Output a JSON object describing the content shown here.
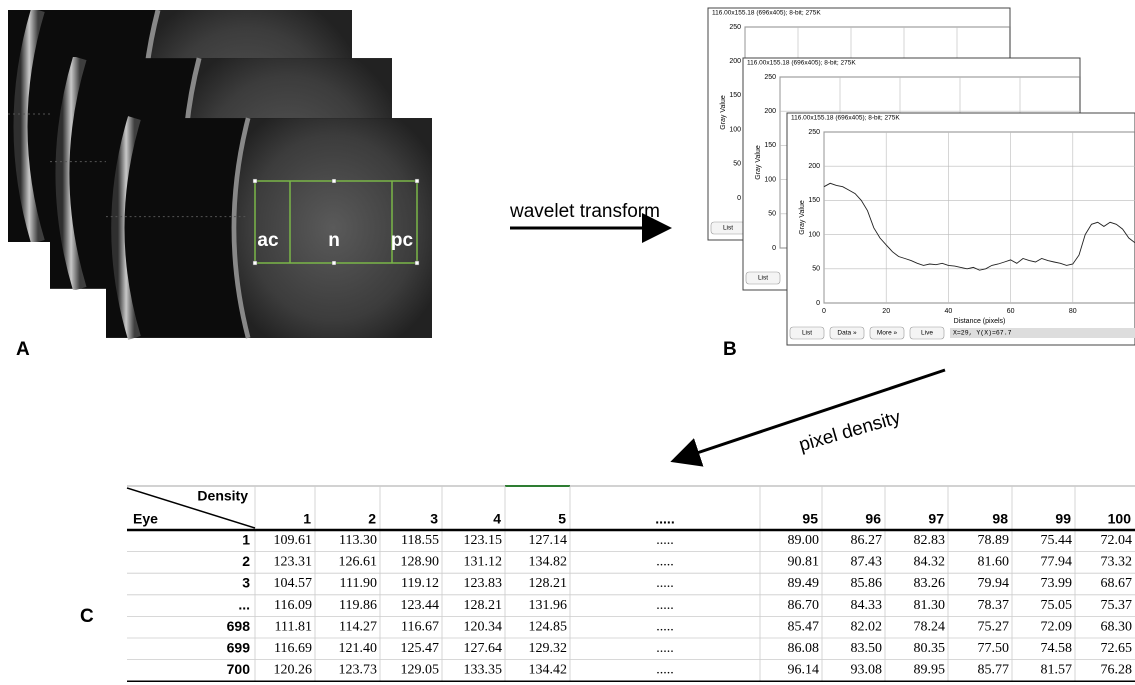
{
  "panels": {
    "a": "A",
    "b": "B",
    "c": "C"
  },
  "regions": [
    "ac",
    "n",
    "pc"
  ],
  "arrows": {
    "first": "wavelet transform",
    "second": "pixel density"
  },
  "plot": {
    "header": "116.00x155.18  (696x405); 8-bit; 275K",
    "ylabel": "Gray Value",
    "xlabel": "Distance (pixels)",
    "xlim": [
      0,
      100
    ],
    "ylim": [
      0,
      250
    ],
    "xticks": [
      0,
      20,
      40,
      60,
      80
    ],
    "yticks": [
      0,
      50,
      100,
      150,
      200,
      250
    ],
    "x": [
      0,
      2,
      4,
      6,
      8,
      10,
      12,
      14,
      16,
      18,
      20,
      22,
      24,
      26,
      28,
      30,
      32,
      34,
      36,
      38,
      40,
      42,
      44,
      46,
      48,
      50,
      52,
      54,
      56,
      58,
      60,
      62,
      64,
      66,
      68,
      70,
      72,
      74,
      76,
      78,
      80,
      82,
      84,
      86,
      88,
      90,
      92,
      94,
      96,
      98,
      100
    ],
    "y": [
      170,
      175,
      172,
      170,
      165,
      160,
      150,
      135,
      110,
      95,
      85,
      75,
      68,
      65,
      62,
      58,
      55,
      57,
      56,
      58,
      55,
      54,
      52,
      50,
      52,
      48,
      50,
      55,
      57,
      60,
      63,
      58,
      65,
      62,
      60,
      65,
      62,
      60,
      58,
      55,
      57,
      70,
      100,
      115,
      118,
      112,
      118,
      115,
      108,
      95,
      88
    ],
    "buttons": [
      "List",
      "Data »",
      "More »",
      "Live"
    ],
    "status": "X=29, Y(X)=67.7"
  },
  "table": {
    "corner_top": "Density",
    "corner_bottom": "Eye",
    "columns": [
      "1",
      "2",
      "3",
      "4",
      "5",
      ".....",
      "95",
      "96",
      "97",
      "98",
      "99",
      "100"
    ],
    "rows": [
      [
        "1",
        "109.61",
        "113.30",
        "118.55",
        "123.15",
        "127.14",
        ".....",
        "89.00",
        "86.27",
        "82.83",
        "78.89",
        "75.44",
        "72.04"
      ],
      [
        "2",
        "123.31",
        "126.61",
        "128.90",
        "131.12",
        "134.82",
        ".....",
        "90.81",
        "87.43",
        "84.32",
        "81.60",
        "77.94",
        "73.32"
      ],
      [
        "3",
        "104.57",
        "111.90",
        "119.12",
        "123.83",
        "128.21",
        ".....",
        "89.49",
        "85.86",
        "83.26",
        "79.94",
        "73.99",
        "68.67"
      ],
      [
        "...",
        "116.09",
        "119.86",
        "123.44",
        "128.21",
        "131.96",
        ".....",
        "86.70",
        "84.33",
        "81.30",
        "78.37",
        "75.05",
        "75.37"
      ],
      [
        "698",
        "111.81",
        "114.27",
        "116.67",
        "120.34",
        "124.85",
        ".....",
        "85.47",
        "82.02",
        "78.24",
        "75.27",
        "72.09",
        "68.30"
      ],
      [
        "699",
        "116.69",
        "121.40",
        "125.47",
        "127.64",
        "129.32",
        ".....",
        "86.08",
        "83.50",
        "80.35",
        "77.50",
        "74.58",
        "72.65"
      ],
      [
        "700",
        "120.26",
        "123.73",
        "129.05",
        "133.35",
        "134.42",
        ".....",
        "96.14",
        "93.08",
        "89.95",
        "85.77",
        "81.57",
        "76.28"
      ]
    ]
  }
}
